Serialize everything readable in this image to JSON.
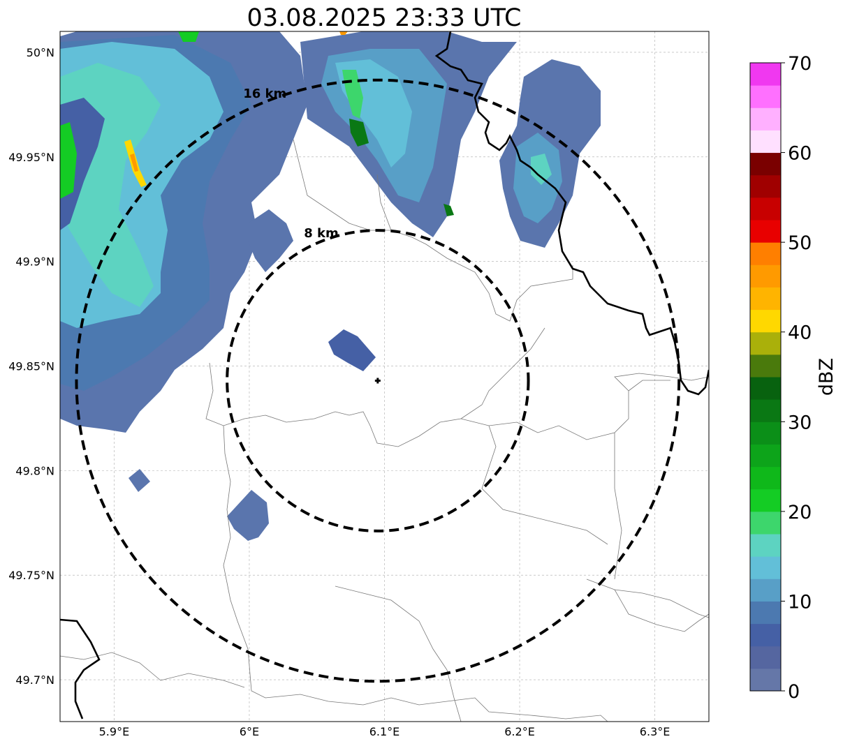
{
  "title": "03.08.2025 23:33 UTC",
  "map": {
    "lon_range": [
      5.86,
      6.34
    ],
    "lat_range": [
      49.68,
      50.01
    ],
    "center": {
      "lon": 6.095,
      "lat": 49.843
    },
    "lon_ticks": [
      {
        "value": 5.9,
        "label": "5.9°E"
      },
      {
        "value": 6.0,
        "label": "6°E"
      },
      {
        "value": 6.1,
        "label": "6.1°E"
      },
      {
        "value": 6.2,
        "label": "6.2°E"
      },
      {
        "value": 6.3,
        "label": "6.3°E"
      }
    ],
    "lat_ticks": [
      {
        "value": 50.0,
        "label": "50°N"
      },
      {
        "value": 49.95,
        "label": "49.95°N"
      },
      {
        "value": 49.9,
        "label": "49.9°N"
      },
      {
        "value": 49.85,
        "label": "49.85°N"
      },
      {
        "value": 49.8,
        "label": "49.8°N"
      },
      {
        "value": 49.75,
        "label": "49.75°N"
      },
      {
        "value": 49.7,
        "label": "49.7°N"
      }
    ],
    "range_rings": [
      {
        "radius_km": 8,
        "label": "8 km"
      },
      {
        "radius_km": 16,
        "label": "16 km"
      }
    ],
    "grid": true
  },
  "colorbar": {
    "label": "dBZ",
    "min": 0,
    "max": 70,
    "step": 2.5,
    "ticks": [
      "0",
      "10",
      "20",
      "30",
      "40",
      "50",
      "60",
      "70"
    ],
    "colors": [
      "#6577a8",
      "#5566a0",
      "#4560a5",
      "#4c79b0",
      "#589fc7",
      "#62bfd8",
      "#5dd3c1",
      "#3dd66c",
      "#14cc24",
      "#0fb81a",
      "#0da41a",
      "#0b8f18",
      "#0a7814",
      "#08620f",
      "#4a7a0c",
      "#aab00a",
      "#ffd800",
      "#ffb400",
      "#ff9a00",
      "#ff7f00",
      "#e80000",
      "#c80000",
      "#a00000",
      "#7a0000",
      "#ffe0ff",
      "#ffb0ff",
      "#ff70ff",
      "#f038f0"
    ]
  }
}
